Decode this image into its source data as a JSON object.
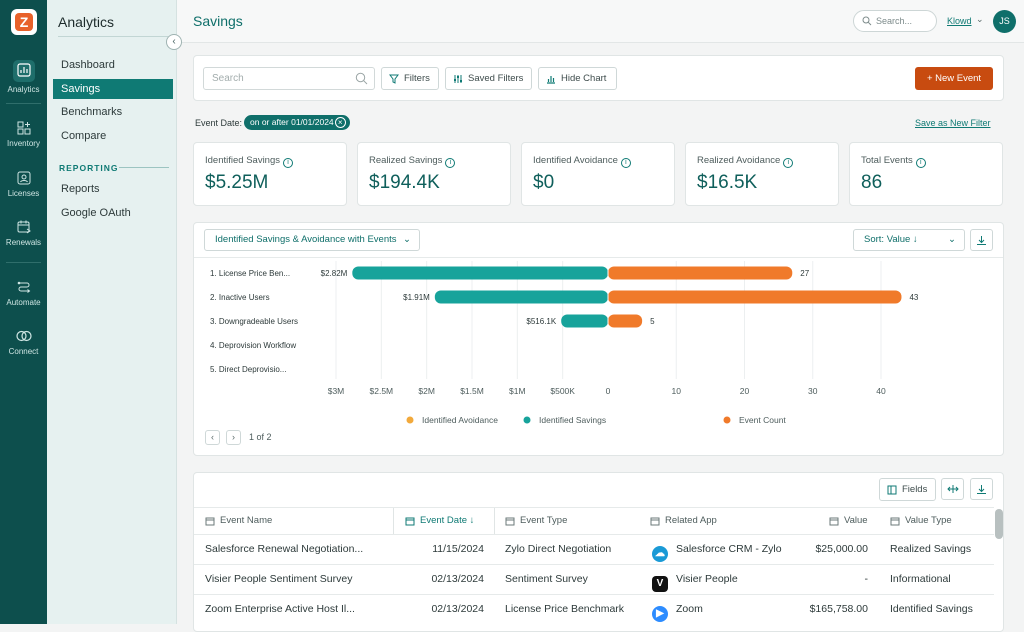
{
  "app": {
    "logo_letter": "Z"
  },
  "rail": {
    "items": [
      {
        "label": "Analytics",
        "icon": "bar-chart-icon"
      },
      {
        "label": "Inventory",
        "icon": "grid-plus-icon"
      },
      {
        "label": "Licenses",
        "icon": "id-card-icon"
      },
      {
        "label": "Renewals",
        "icon": "calendar-refresh-icon"
      },
      {
        "label": "Automate",
        "icon": "flow-icon"
      },
      {
        "label": "Connect",
        "icon": "link-rings-icon"
      }
    ]
  },
  "sidebar": {
    "title": "Analytics",
    "items": [
      "Dashboard",
      "Savings",
      "Benchmarks",
      "Compare"
    ],
    "section": "REPORTING",
    "report_items": [
      "Reports",
      "Google OAuth"
    ]
  },
  "topbar": {
    "title": "Savings",
    "search_placeholder": "Search...",
    "org": "Klowd",
    "avatar": "JS"
  },
  "filters": {
    "search_placeholder": "Search",
    "filters_label": "Filters",
    "saved_filters_label": "Saved Filters",
    "hide_chart_label": "Hide Chart",
    "new_event_label": "New Event",
    "event_date_label": "Event Date:",
    "event_date_chip": "on or after 01/01/2024",
    "save_filter_link": "Save as New Filter"
  },
  "kpis": [
    {
      "label": "Identified Savings",
      "value": "$5.25M"
    },
    {
      "label": "Realized Savings",
      "value": "$194.4K"
    },
    {
      "label": "Identified Avoidance",
      "value": "$0"
    },
    {
      "label": "Realized Avoidance",
      "value": "$16.5K"
    },
    {
      "label": "Total Events",
      "value": "86"
    }
  ],
  "chart_panel": {
    "dropdown": "Identified Savings & Avoidance with Events",
    "sort": "Sort: Value ↓",
    "pager_text": "1 of 2"
  },
  "chart_data": {
    "type": "bar",
    "orientation": "horizontal",
    "categories": [
      "1. License Price Ben...",
      "2. Inactive Users",
      "3. Downgradeable Users",
      "4. Deprovision Workflow",
      "5. Direct Deprovisio..."
    ],
    "series": [
      {
        "name": "Identified Avoidance",
        "color": "#f2a93b",
        "values": [
          0,
          0,
          0,
          0,
          0
        ]
      },
      {
        "name": "Identified Savings",
        "color": "#17a39b",
        "values": [
          2820000,
          1910000,
          516100,
          0,
          0
        ],
        "labels": [
          "$2.82M",
          "$1.91M",
          "$516.1K",
          "",
          ""
        ]
      },
      {
        "name": "Event Count",
        "color": "#f07a2a",
        "values": [
          27,
          43,
          5,
          0,
          0
        ],
        "labels": [
          "27",
          "43",
          "5",
          "",
          ""
        ]
      }
    ],
    "left_axis": {
      "ticks": [
        "$3M",
        "$2.5M",
        "$2M",
        "$1.5M",
        "$1M",
        "$500K",
        "0"
      ],
      "range": [
        0,
        3000000
      ]
    },
    "right_axis": {
      "ticks": [
        "10",
        "20",
        "30",
        "40"
      ],
      "range": [
        0,
        40
      ]
    },
    "legend_position": "bottom"
  },
  "table": {
    "fields_label": "Fields",
    "columns": [
      "Event Name",
      "Event Date ↓",
      "Event Type",
      "Related App",
      "Value",
      "Value Type"
    ],
    "rows": [
      {
        "name": "Salesforce Renewal Negotiation...",
        "date": "11/15/2024",
        "type": "Zylo Direct Negotiation",
        "app": "Salesforce CRM - Zylo",
        "app_icon": "salesforce-icon",
        "value": "$25,000.00",
        "value_type": "Realized Savings"
      },
      {
        "name": "Visier People Sentiment Survey",
        "date": "02/13/2024",
        "type": "Sentiment Survey",
        "app": "Visier People",
        "app_icon": "visier-icon",
        "value": "-",
        "value_type": "Informational"
      },
      {
        "name": "Zoom Enterprise Active Host Il...",
        "date": "02/13/2024",
        "type": "License Price Benchmark",
        "app": "Zoom",
        "app_icon": "zoom-icon",
        "value": "$165,758.00",
        "value_type": "Identified Savings"
      }
    ]
  },
  "colors": {
    "brand": "#0f6f6a",
    "accent": "#c84b10",
    "rail": "#0d4f4d"
  }
}
